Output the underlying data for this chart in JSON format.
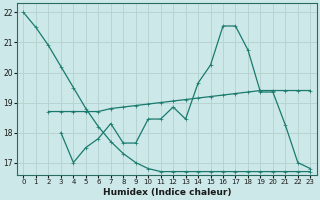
{
  "bg_color": "#cce8e8",
  "grid_color": "#b8d4d0",
  "line_color": "#1a7a6e",
  "xlabel": "Humidex (Indice chaleur)",
  "xlim": [
    -0.5,
    23.5
  ],
  "ylim": [
    16.6,
    22.3
  ],
  "yticks": [
    17,
    18,
    19,
    20,
    21,
    22
  ],
  "xticks": [
    0,
    1,
    2,
    3,
    4,
    5,
    6,
    7,
    8,
    9,
    10,
    11,
    12,
    13,
    14,
    15,
    16,
    17,
    18,
    19,
    20,
    21,
    22,
    23
  ],
  "line1_x": [
    0,
    1,
    2,
    3,
    4,
    5,
    6,
    7,
    8,
    9,
    10,
    11,
    12,
    13,
    14,
    15,
    16,
    17,
    18,
    19,
    20,
    21,
    22,
    23
  ],
  "line1_y": [
    22.0,
    21.5,
    20.9,
    20.2,
    19.5,
    18.8,
    18.2,
    17.7,
    17.3,
    17.0,
    16.8,
    16.7,
    16.7,
    16.7,
    16.7,
    16.7,
    16.7,
    16.7,
    16.7,
    16.7,
    16.7,
    16.7,
    16.7,
    16.7
  ],
  "line2_x": [
    2,
    3,
    4,
    5,
    6,
    7,
    8,
    9,
    10,
    11,
    12,
    13,
    14,
    15,
    16,
    17,
    18,
    19,
    20,
    21,
    22,
    23
  ],
  "line2_y": [
    18.7,
    18.7,
    18.7,
    18.7,
    18.7,
    18.8,
    18.85,
    18.9,
    18.95,
    19.0,
    19.05,
    19.1,
    19.15,
    19.2,
    19.25,
    19.3,
    19.35,
    19.4,
    19.4,
    19.4,
    19.4,
    19.4
  ],
  "line3_x": [
    3,
    4,
    5,
    6,
    7,
    8,
    9,
    10,
    11,
    12,
    13,
    14,
    15,
    16,
    17,
    18,
    19,
    20,
    21,
    22,
    23
  ],
  "line3_y": [
    18.0,
    17.0,
    17.5,
    17.8,
    18.3,
    17.65,
    17.65,
    18.45,
    18.45,
    18.85,
    18.45,
    19.65,
    20.25,
    21.55,
    21.55,
    20.75,
    19.35,
    19.35,
    18.25,
    17.0,
    16.8
  ]
}
